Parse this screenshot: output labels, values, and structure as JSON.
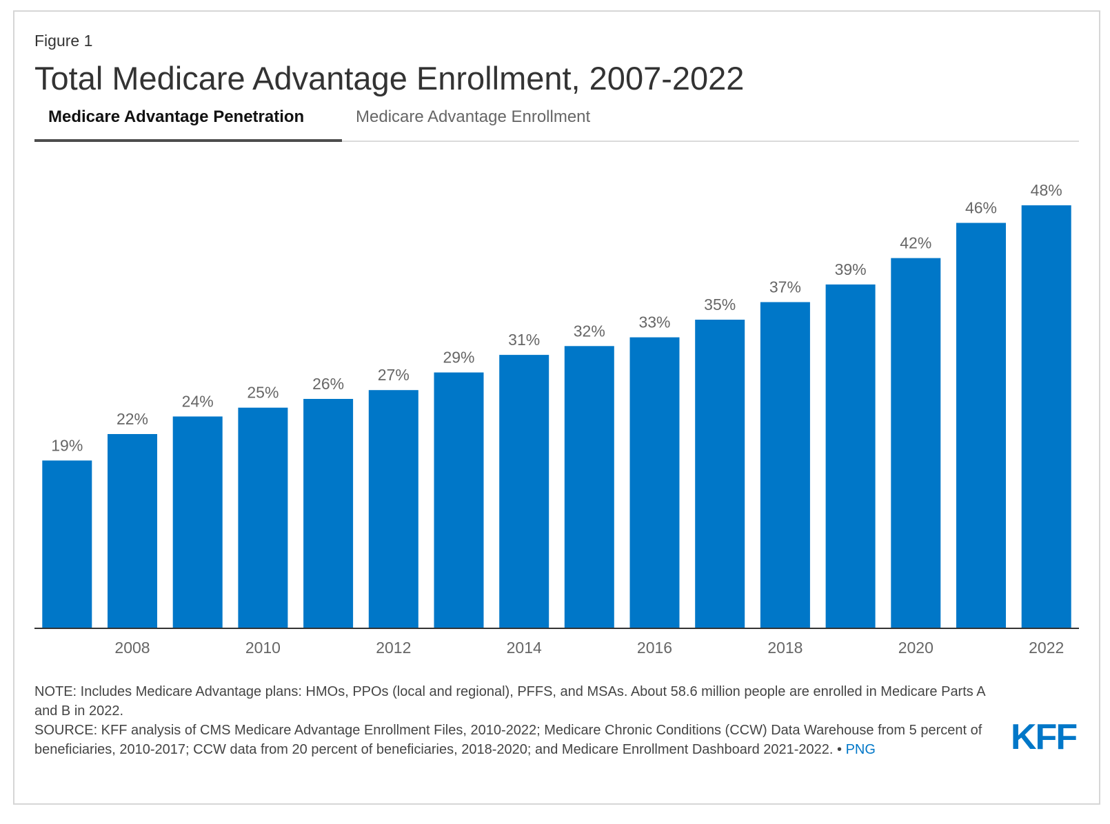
{
  "figure_label": "Figure 1",
  "title": "Total Medicare Advantage Enrollment, 2007-2022",
  "tabs": [
    {
      "label": "Medicare Advantage Penetration",
      "active": true
    },
    {
      "label": "Medicare Advantage Enrollment",
      "active": false
    }
  ],
  "chart_data": {
    "type": "bar",
    "categories": [
      "2007",
      "2008",
      "2009",
      "2010",
      "2011",
      "2012",
      "2013",
      "2014",
      "2015",
      "2016",
      "2017",
      "2018",
      "2019",
      "2020",
      "2021",
      "2022"
    ],
    "values": [
      19,
      22,
      24,
      25,
      26,
      27,
      29,
      31,
      32,
      33,
      35,
      37,
      39,
      42,
      46,
      48
    ],
    "data_labels": [
      "19%",
      "22%",
      "24%",
      "25%",
      "26%",
      "27%",
      "29%",
      "31%",
      "32%",
      "33%",
      "35%",
      "37%",
      "39%",
      "42%",
      "46%",
      "48%"
    ],
    "x_tick_labels": [
      "2008",
      "2010",
      "2012",
      "2014",
      "2016",
      "2018",
      "2020",
      "2022"
    ],
    "ylim": [
      0,
      48
    ],
    "bar_color": "#0077c8",
    "label_color": "#666666",
    "grid": false,
    "legend": "none"
  },
  "note": "NOTE: Includes Medicare Advantage plans: HMOs, PPOs (local and regional), PFFS, and MSAs. About 58.6 million people are enrolled in Medicare Parts A and B in 2022.",
  "source": "SOURCE: KFF analysis of CMS Medicare Advantage Enrollment Files, 2010-2022; Medicare Chronic Conditions (CCW) Data Warehouse from 5 percent of beneficiaries, 2010-2017; CCW data from 20 percent of beneficiaries, 2018-2020; and Medicare Enrollment Dashboard 2021-2022. •",
  "png_link": "PNG",
  "logo": "KFF",
  "colors": {
    "accent": "#0077c8",
    "text": "#333333"
  }
}
